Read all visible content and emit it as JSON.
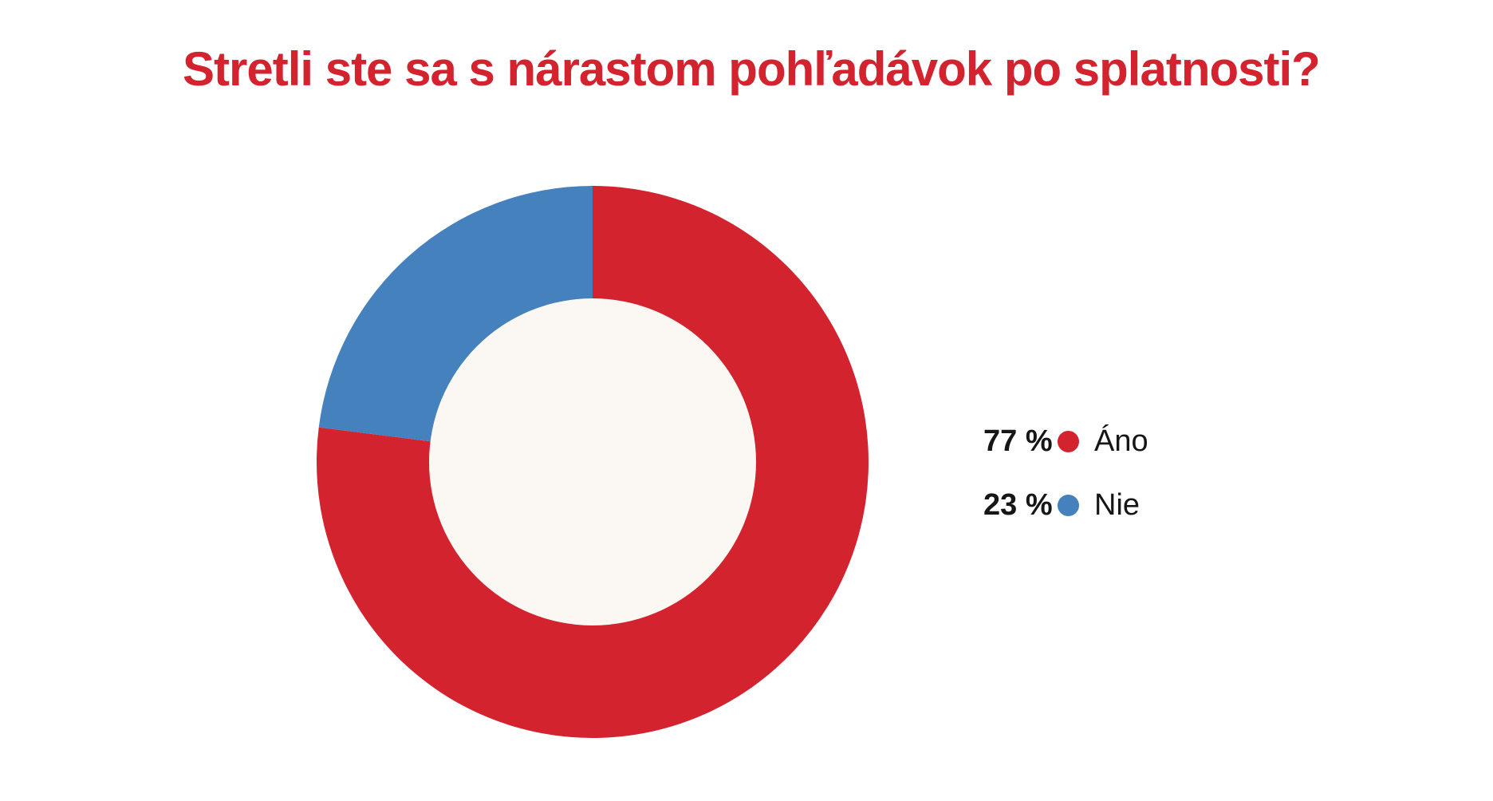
{
  "title": {
    "text": "Stretli ste sa s nárastom pohľadávok po splatnosti?",
    "color": "#d2232f"
  },
  "chart_data": {
    "type": "pie",
    "subtype": "donut",
    "title": "Stretli ste sa s nárastom pohľadávok po splatnosti?",
    "categories": [
      "Áno",
      "Nie"
    ],
    "values": [
      77,
      23
    ],
    "unit": "%",
    "series_colors": [
      "#d2232f",
      "#4581bc"
    ],
    "hole_color": "#fbf8f4",
    "background_color": "#ffffff",
    "legend_position": "right",
    "start_angle_deg": 0,
    "direction": "clockwise"
  },
  "legend": {
    "items": [
      {
        "value_label": "77 %",
        "label": "Áno",
        "color": "#d2232f"
      },
      {
        "value_label": "23 %",
        "label": "Nie",
        "color": "#4581bc"
      }
    ]
  }
}
